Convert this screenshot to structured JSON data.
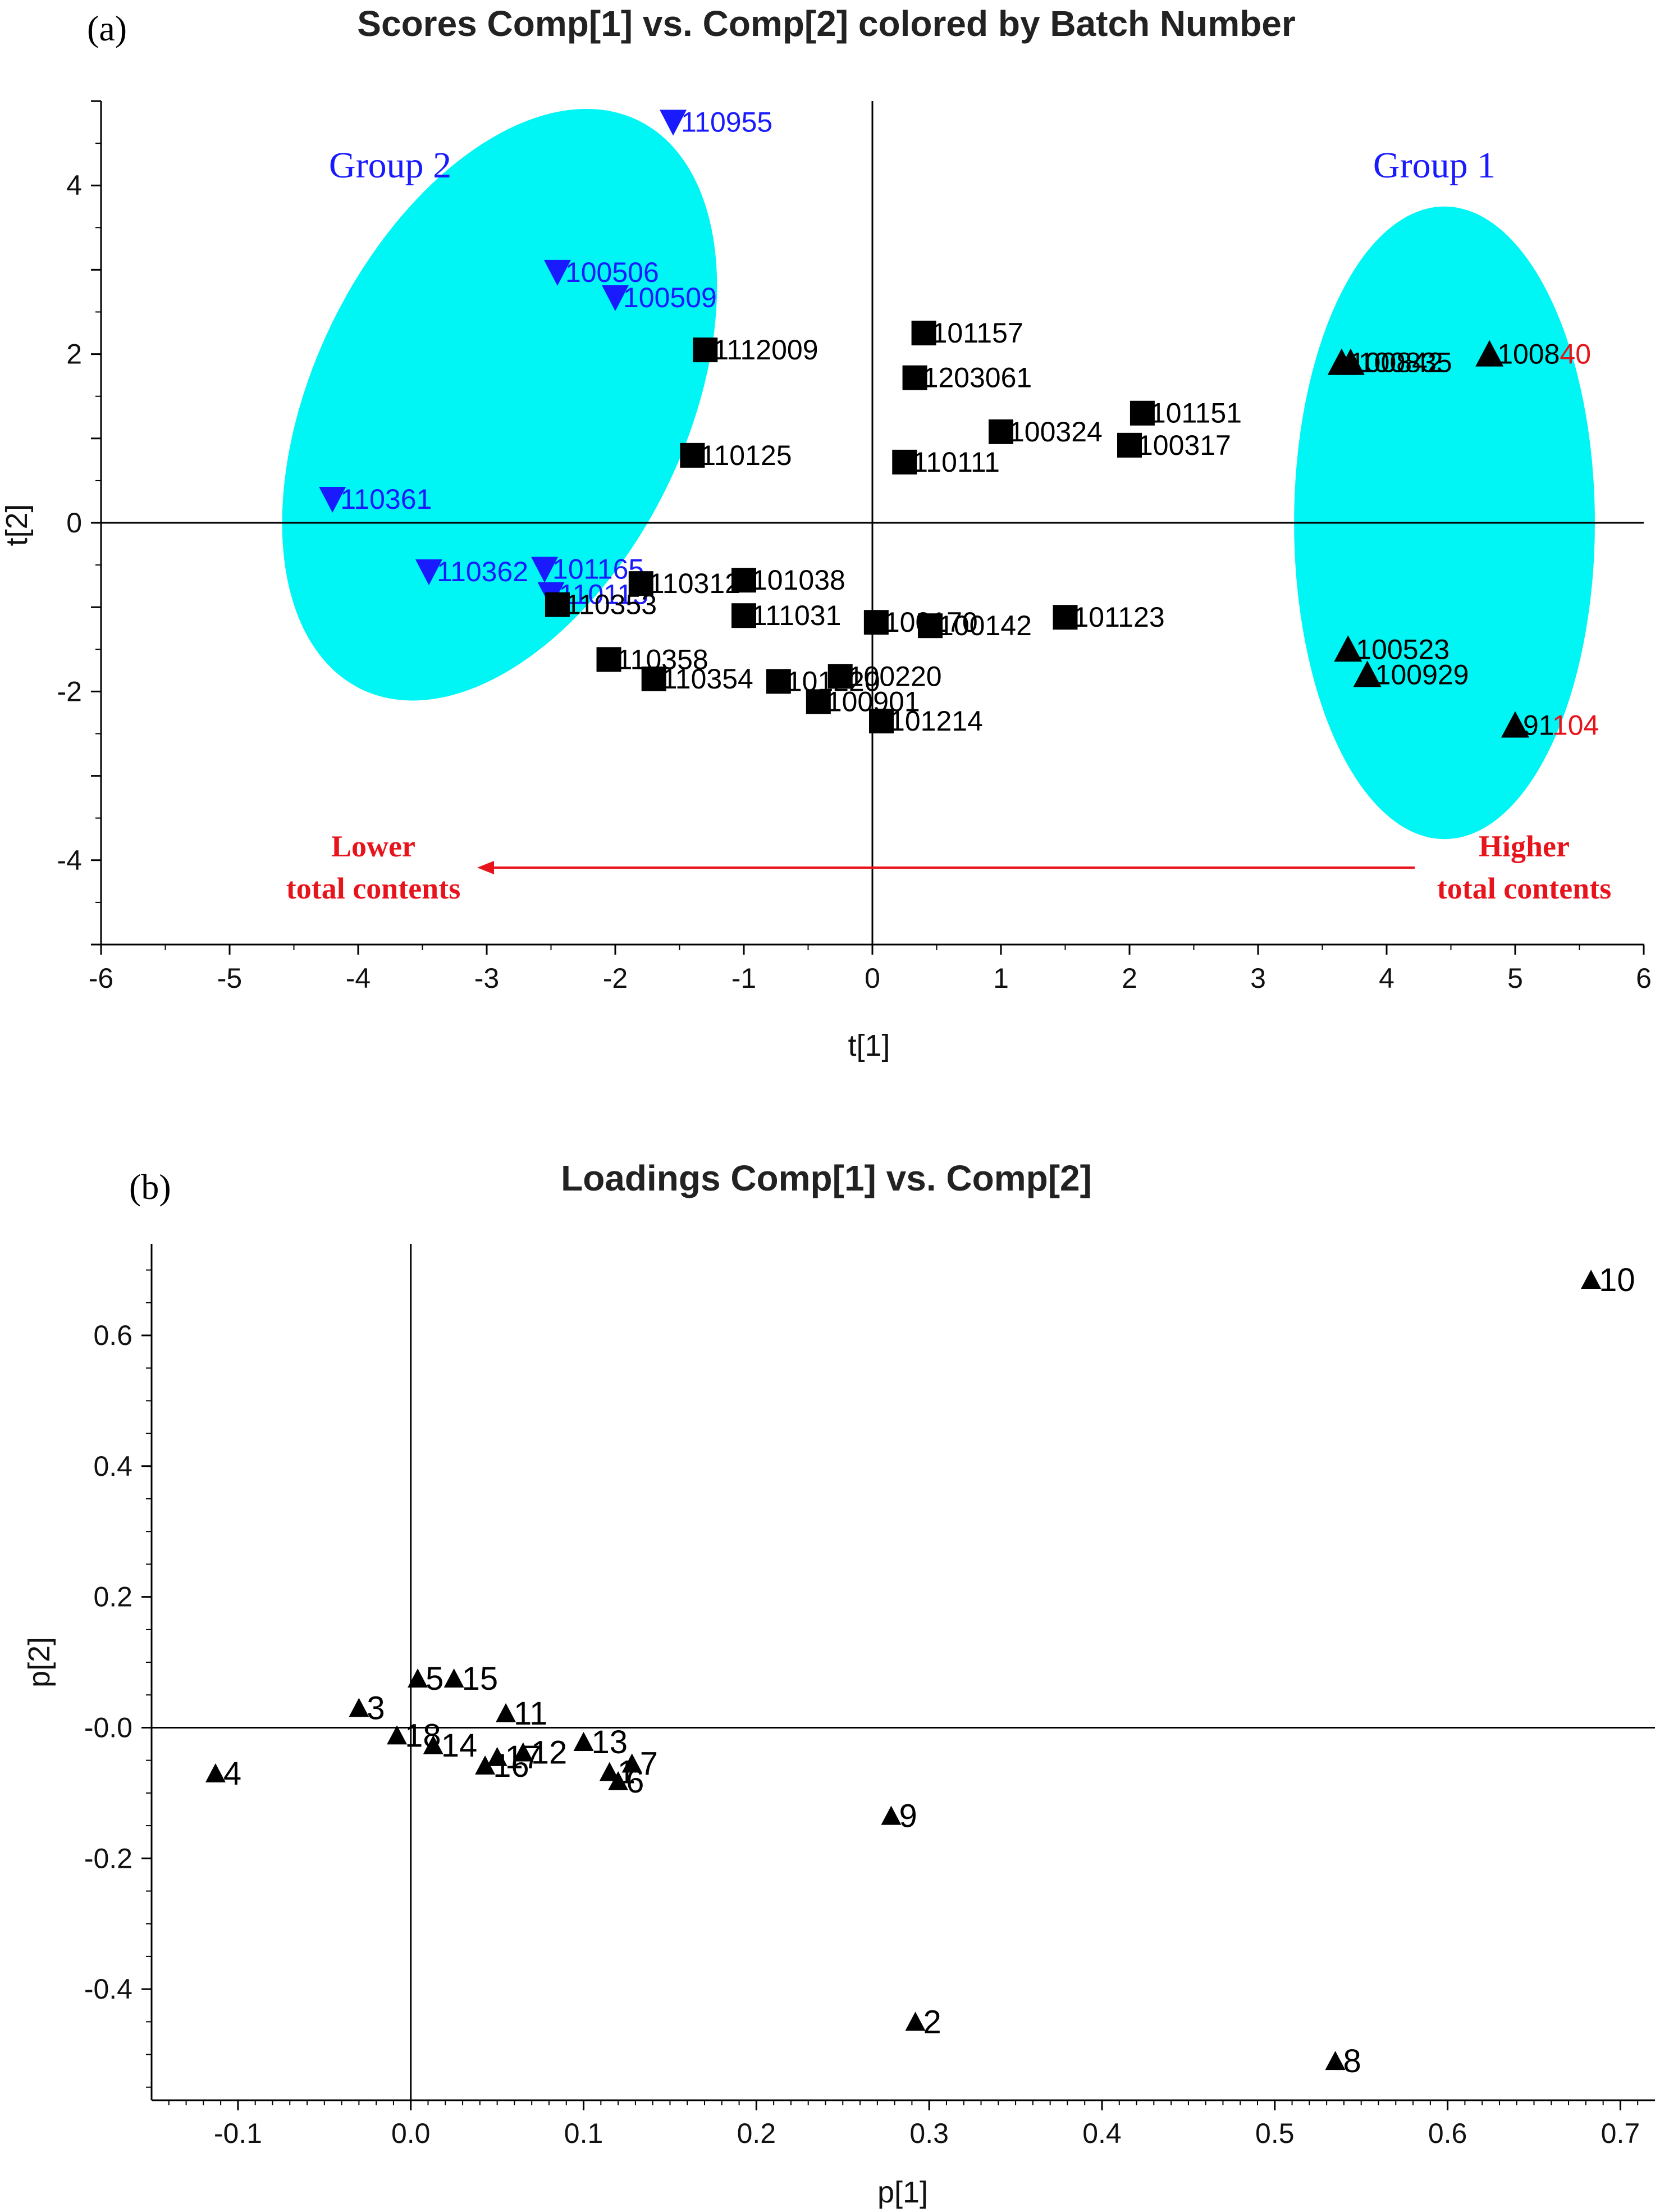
{
  "colors": {
    "group": "#1a1aff",
    "ellipse": "#00f5f5",
    "emphasis": "#e8141c",
    "marker": "#000000"
  },
  "chart_data": [
    {
      "panel_label": "(a)",
      "type": "scatter",
      "title": "Scores Comp[1] vs. Comp[2] colored by Batch Number",
      "xlabel": "t[1]",
      "ylabel": "t[2]",
      "xlim": [
        -6,
        6
      ],
      "ylim": [
        -5,
        5
      ],
      "xticks": [
        "-6",
        "-5",
        "-4",
        "-3",
        "-2",
        "-1",
        "0",
        "1",
        "2",
        "3",
        "4",
        "5",
        "6"
      ],
      "yticks": [
        "4",
        "2",
        "0",
        "-2",
        "-4"
      ],
      "reference_lines": "x = 0 and y = 0",
      "grid": false,
      "group_labels": [
        "Group 2",
        "Group 1"
      ],
      "annotation_left": [
        "Lower",
        "total contents"
      ],
      "annotation_right": [
        "Higher",
        "total contents"
      ],
      "annotation_arrow": "right-to-left",
      "groups": [
        {
          "name": "Group 2",
          "marker": "triangle-down",
          "color": "#1a1aff",
          "points": [
            {
              "label": "110955",
              "x": -1.55,
              "y": 4.75
            },
            {
              "label": "100506",
              "x": -2.45,
              "y": 2.97
            },
            {
              "label": "100509",
              "x": -2.0,
              "y": 2.67
            },
            {
              "label": "110361",
              "x": -4.2,
              "y": 0.28
            },
            {
              "label": "110362",
              "x": -3.45,
              "y": -0.58
            },
            {
              "label": "101165",
              "x": -2.55,
              "y": -0.55
            },
            {
              "label": "110115",
              "x": -2.5,
              "y": -0.85
            }
          ]
        },
        {
          "name": "",
          "marker": "square",
          "color": "#000000",
          "points": [
            {
              "label": "1112009",
              "x": -1.3,
              "y": 2.05
            },
            {
              "label": "101157",
              "x": 0.4,
              "y": 2.25
            },
            {
              "label": "1203061",
              "x": 0.33,
              "y": 1.72
            },
            {
              "label": "101151",
              "x": 2.1,
              "y": 1.3
            },
            {
              "label": "100324",
              "x": 1.0,
              "y": 1.08
            },
            {
              "label": "100317",
              "x": 2.0,
              "y": 0.92
            },
            {
              "label": "110125",
              "x": -1.4,
              "y": 0.8
            },
            {
              "label": "110111",
              "x": 0.25,
              "y": 0.72
            },
            {
              "label": "110312",
              "x": -1.8,
              "y": -0.72
            },
            {
              "label": "101038",
              "x": -1.0,
              "y": -0.68
            },
            {
              "label": "110353",
              "x": -2.45,
              "y": -0.97
            },
            {
              "label": "111031",
              "x": -1.0,
              "y": -1.1
            },
            {
              "label": "100170",
              "x": 0.03,
              "y": -1.18
            },
            {
              "label": "100142",
              "x": 0.45,
              "y": -1.22
            },
            {
              "label": "101123",
              "x": 1.5,
              "y": -1.12
            },
            {
              "label": "110358",
              "x": -2.05,
              "y": -1.62
            },
            {
              "label": "110354",
              "x": -1.7,
              "y": -1.85
            },
            {
              "label": "101220",
              "x": -0.73,
              "y": -1.88
            },
            {
              "label": "100220",
              "x": -0.25,
              "y": -1.82
            },
            {
              "label": "100901",
              "x": -0.42,
              "y": -2.12
            },
            {
              "label": "101214",
              "x": 0.07,
              "y": -2.35
            }
          ]
        },
        {
          "name": "Group 1",
          "marker": "triangle-up",
          "color": "#000000",
          "points": [
            {
              "label": "100842",
              "x": 3.65,
              "y": 1.9
            },
            {
              "label": "100835",
              "x": 3.72,
              "y": 1.9
            },
            {
              "label": "100840",
              "x": 4.8,
              "y": 2.0,
              "highlight_from": 4
            },
            {
              "label": "100523",
              "x": 3.7,
              "y": -1.5
            },
            {
              "label": "100929",
              "x": 3.85,
              "y": -1.8
            },
            {
              "label": "91104",
              "x": 5.0,
              "y": -2.4,
              "highlight_from": 2
            }
          ]
        }
      ],
      "ellipses": [
        {
          "cx": -2.9,
          "cy": 1.4,
          "rx": 1.45,
          "ry": 3.75,
          "angle_deg": 26
        },
        {
          "cx": 4.45,
          "cy": 0.0,
          "rx": 1.17,
          "ry": 3.75,
          "angle_deg": 0
        }
      ]
    },
    {
      "panel_label": "(b)",
      "type": "scatter",
      "title": "Loadings Comp[1] vs. Comp[2]",
      "xlabel": "p[1]",
      "ylabel": "p[2]",
      "xlim": [
        -0.15,
        0.72
      ],
      "ylim": [
        -0.57,
        0.74
      ],
      "xticks": [
        "-0.1",
        "0.0",
        "0.1",
        "0.2",
        "0.3",
        "0.4",
        "0.5",
        "0.6",
        "0.7"
      ],
      "yticks": [
        "0.6",
        "0.4",
        "0.2",
        "-0.0",
        "-0.2",
        "-0.4"
      ],
      "reference_lines": "x = 0 and y = 0",
      "grid": false,
      "marker": "triangle-up",
      "points": [
        {
          "label": "10",
          "x": 0.683,
          "y": 0.685
        },
        {
          "label": "5",
          "x": 0.004,
          "y": 0.075
        },
        {
          "label": "15",
          "x": 0.025,
          "y": 0.075
        },
        {
          "label": "3",
          "x": -0.03,
          "y": 0.03
        },
        {
          "label": "11",
          "x": 0.055,
          "y": 0.022
        },
        {
          "label": "18",
          "x": -0.008,
          "y": -0.012
        },
        {
          "label": "14",
          "x": 0.013,
          "y": -0.027
        },
        {
          "label": "13",
          "x": 0.1,
          "y": -0.022
        },
        {
          "label": "12",
          "x": 0.065,
          "y": -0.038
        },
        {
          "label": "17",
          "x": 0.05,
          "y": -0.045
        },
        {
          "label": "16",
          "x": 0.043,
          "y": -0.058
        },
        {
          "label": "7",
          "x": 0.128,
          "y": -0.055
        },
        {
          "label": "1",
          "x": 0.115,
          "y": -0.068
        },
        {
          "label": "6",
          "x": 0.12,
          "y": -0.082
        },
        {
          "label": "4",
          "x": -0.113,
          "y": -0.07
        },
        {
          "label": "9",
          "x": 0.278,
          "y": -0.135
        },
        {
          "label": "2",
          "x": 0.292,
          "y": -0.45
        },
        {
          "label": "8",
          "x": 0.535,
          "y": -0.51
        }
      ]
    }
  ]
}
